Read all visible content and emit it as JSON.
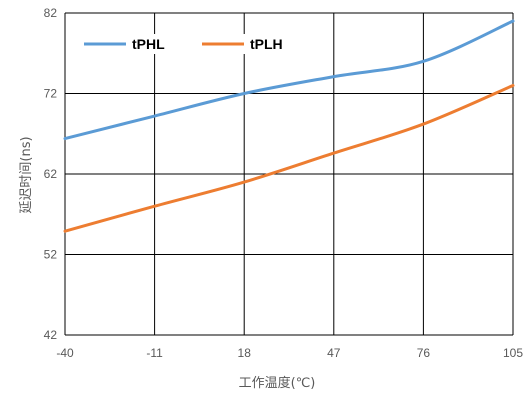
{
  "chart_data": {
    "type": "line",
    "xlabel": "工作温度(℃)",
    "ylabel": "延迟时间(ns)",
    "x": [
      -40,
      -11,
      18,
      47,
      76,
      105
    ],
    "xlim": [
      -40,
      105
    ],
    "ylim": [
      42,
      82
    ],
    "yticks": [
      42,
      52,
      62,
      72,
      82
    ],
    "grid": true,
    "legend_position": "top-left",
    "series": [
      {
        "name": "tPHL",
        "color": "#5B9BD5",
        "values": [
          66.4,
          69.2,
          72.0,
          74.1,
          76.0,
          81.0
        ]
      },
      {
        "name": "tPLH",
        "color": "#ED7D31",
        "values": [
          54.9,
          58.0,
          61.0,
          64.6,
          68.2,
          73.0
        ]
      }
    ]
  }
}
